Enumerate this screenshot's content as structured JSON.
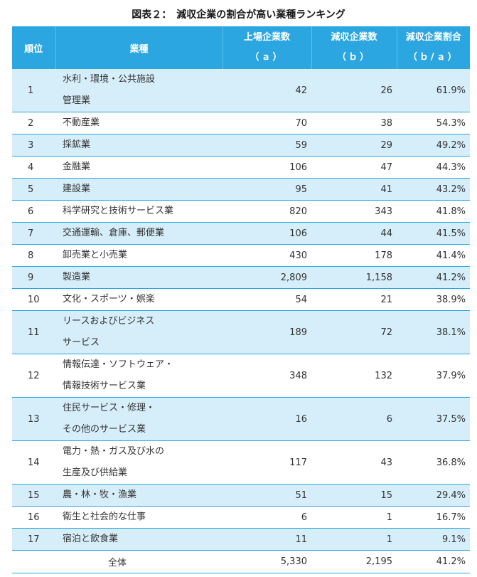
{
  "title": "図表２：　減収企業の割合が高い業種ランキング",
  "headers": {
    "rank": "順位",
    "industry": "業種",
    "listed_l1": "上場企業数",
    "listed_l2": "（ａ）",
    "decrease_l1": "減収企業数",
    "decrease_l2": "（ｂ）",
    "ratio_l1": "減収企業割合",
    "ratio_l2": "（ｂ/ａ）"
  },
  "rows": [
    {
      "rank": "1",
      "industry": [
        "水利・環境・公共施設",
        "管理業"
      ],
      "listed": "42",
      "decrease": "26",
      "ratio": "61.9%"
    },
    {
      "rank": "2",
      "industry": [
        "不動産業"
      ],
      "listed": "70",
      "decrease": "38",
      "ratio": "54.3%"
    },
    {
      "rank": "3",
      "industry": [
        "採鉱業"
      ],
      "listed": "59",
      "decrease": "29",
      "ratio": "49.2%"
    },
    {
      "rank": "4",
      "industry": [
        "金融業"
      ],
      "listed": "106",
      "decrease": "47",
      "ratio": "44.3%"
    },
    {
      "rank": "5",
      "industry": [
        "建設業"
      ],
      "listed": "95",
      "decrease": "41",
      "ratio": "43.2%"
    },
    {
      "rank": "6",
      "industry": [
        "科学研究と技術サービス業"
      ],
      "listed": "820",
      "decrease": "343",
      "ratio": "41.8%"
    },
    {
      "rank": "7",
      "industry": [
        "交通運輸、倉庫、郵便業"
      ],
      "listed": "106",
      "decrease": "44",
      "ratio": "41.5%"
    },
    {
      "rank": "8",
      "industry": [
        "卸売業と小売業"
      ],
      "listed": "430",
      "decrease": "178",
      "ratio": "41.4%"
    },
    {
      "rank": "9",
      "industry": [
        "製造業"
      ],
      "listed": "2,809",
      "decrease": "1,158",
      "ratio": "41.2%"
    },
    {
      "rank": "10",
      "industry": [
        "文化・スポーツ・娯楽"
      ],
      "listed": "54",
      "decrease": "21",
      "ratio": "38.9%"
    },
    {
      "rank": "11",
      "industry": [
        "リースおよびビジネス",
        "サービス"
      ],
      "listed": "189",
      "decrease": "72",
      "ratio": "38.1%"
    },
    {
      "rank": "12",
      "industry": [
        "情報伝達・ソフトウェア・",
        "情報技術サービス業"
      ],
      "listed": "348",
      "decrease": "132",
      "ratio": "37.9%"
    },
    {
      "rank": "13",
      "industry": [
        "住民サービス・修理・",
        "その他のサービス業"
      ],
      "listed": "16",
      "decrease": "6",
      "ratio": "37.5%"
    },
    {
      "rank": "14",
      "industry": [
        "電力・熱・ガス及び水の",
        "生産及び供給業"
      ],
      "listed": "117",
      "decrease": "43",
      "ratio": "36.8%"
    },
    {
      "rank": "15",
      "industry": [
        "農・林・牧・漁業"
      ],
      "listed": "51",
      "decrease": "15",
      "ratio": "29.4%"
    },
    {
      "rank": "16",
      "industry": [
        "衛生と社会的な仕事"
      ],
      "listed": "6",
      "decrease": "1",
      "ratio": "16.7%"
    },
    {
      "rank": "17",
      "industry": [
        "宿泊と飲食業"
      ],
      "listed": "11",
      "decrease": "1",
      "ratio": "9.1%"
    }
  ],
  "total": {
    "label": "全体",
    "listed": "5,330",
    "decrease": "2,195",
    "ratio": "41.2%"
  },
  "colors": {
    "header_bg": "#2ba6e1",
    "stripe_bg": "#d6eefa",
    "grid_line": "#2ba6e1"
  }
}
